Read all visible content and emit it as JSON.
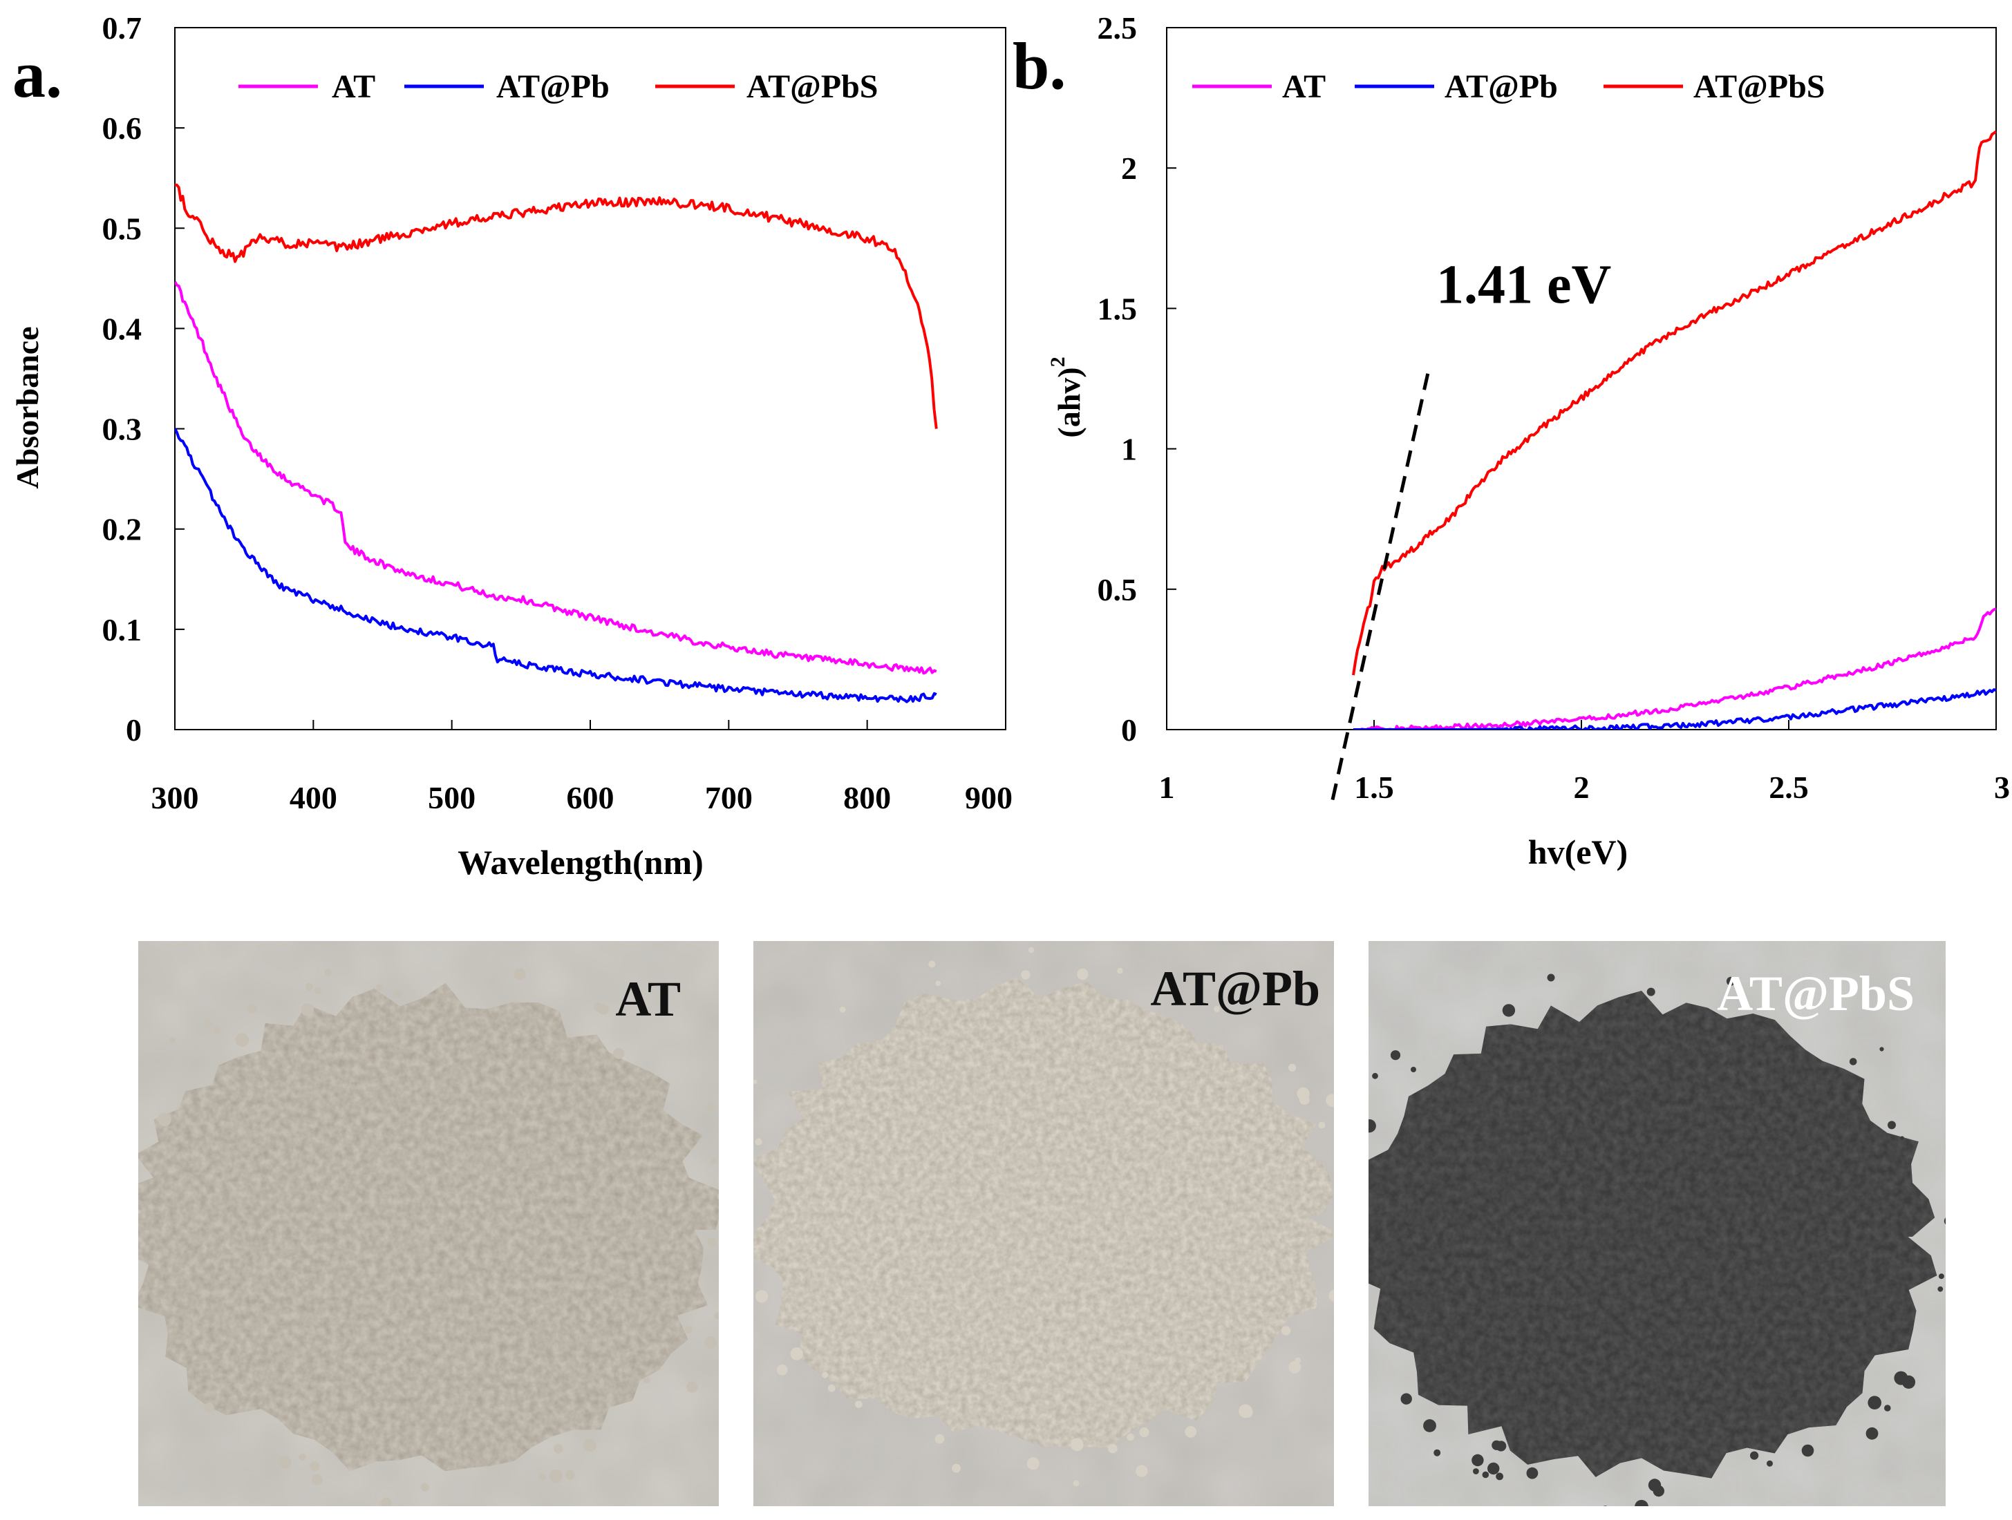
{
  "chart_data": [
    {
      "type": "line",
      "panel_label": "a.",
      "xlabel": "Wavelength(nm)",
      "ylabel": "Absorbance",
      "xlim": [
        300,
        900
      ],
      "ylim": [
        0,
        0.7
      ],
      "xticks": [
        300,
        400,
        500,
        600,
        700,
        800,
        900
      ],
      "xtick_labels": [
        "300",
        "400",
        "500",
        "600",
        "700",
        "800",
        "900"
      ],
      "yticks": [
        0,
        0.1,
        0.2,
        0.3,
        0.4,
        0.5,
        0.6,
        0.7
      ],
      "ytick_labels": [
        "0",
        "0.1",
        "0.2",
        "0.3",
        "0.4",
        "0.5",
        "0.6",
        "0.7"
      ],
      "grid": false,
      "legend_position": "top",
      "series": [
        {
          "name": "AT",
          "color": "#ff00ff",
          "x": [
            300,
            310,
            320,
            330,
            340,
            350,
            360,
            370,
            380,
            400,
            420,
            423,
            430,
            450,
            470,
            500,
            530,
            550,
            600,
            650,
            700,
            750,
            800,
            830,
            850
          ],
          "y": [
            0.45,
            0.415,
            0.385,
            0.35,
            0.32,
            0.29,
            0.275,
            0.262,
            0.25,
            0.235,
            0.218,
            0.185,
            0.178,
            0.165,
            0.155,
            0.145,
            0.133,
            0.13,
            0.112,
            0.095,
            0.082,
            0.072,
            0.065,
            0.06,
            0.058
          ]
        },
        {
          "name": "AT@Pb",
          "color": "#0000ff",
          "x": [
            300,
            310,
            320,
            330,
            340,
            350,
            360,
            370,
            380,
            400,
            420,
            450,
            500,
            530,
            533,
            550,
            600,
            650,
            700,
            750,
            800,
            830,
            850
          ],
          "y": [
            0.3,
            0.275,
            0.25,
            0.225,
            0.2,
            0.18,
            0.165,
            0.15,
            0.14,
            0.13,
            0.12,
            0.105,
            0.092,
            0.083,
            0.07,
            0.065,
            0.055,
            0.048,
            0.04,
            0.035,
            0.032,
            0.03,
            0.035
          ]
        },
        {
          "name": "AT@PbS",
          "color": "#ff0000",
          "x": [
            300,
            310,
            320,
            330,
            345,
            360,
            380,
            400,
            420,
            450,
            500,
            550,
            600,
            650,
            700,
            750,
            800,
            820,
            826,
            835,
            845,
            850
          ],
          "y": [
            0.545,
            0.515,
            0.5,
            0.48,
            0.47,
            0.49,
            0.485,
            0.485,
            0.48,
            0.49,
            0.505,
            0.515,
            0.525,
            0.527,
            0.52,
            0.505,
            0.49,
            0.48,
            0.46,
            0.43,
            0.37,
            0.3
          ]
        }
      ]
    },
    {
      "type": "line",
      "panel_label": "b.",
      "xlabel": "hv(eV)",
      "ylabel_main": "(ahv)",
      "ylabel_sup": "2",
      "xlim": [
        1,
        3
      ],
      "ylim": [
        0,
        2.5
      ],
      "xticks": [
        1,
        1.5,
        2,
        2.5,
        3
      ],
      "xtick_labels": [
        "1",
        "1.5",
        "2",
        "2.5",
        "3"
      ],
      "yticks": [
        0,
        0.5,
        1,
        1.5,
        2,
        2.5
      ],
      "ytick_labels": [
        "0",
        "0.5",
        "1",
        "1.5",
        "2",
        "2.5"
      ],
      "grid": false,
      "legend_position": "top",
      "annotation": {
        "text": "1.41 eV",
        "x": 1.65,
        "y": 1.52
      },
      "tangent_line": {
        "x1": 1.4,
        "y1": -0.25,
        "x2": 1.63,
        "y2": 1.27
      },
      "series": [
        {
          "name": "AT",
          "color": "#ff00ff",
          "x": [
            1.45,
            1.6,
            1.8,
            2.0,
            2.2,
            2.3,
            2.5,
            2.7,
            2.85,
            2.95,
            2.97,
            3.0
          ],
          "y": [
            0.0,
            0.005,
            0.015,
            0.035,
            0.07,
            0.095,
            0.15,
            0.22,
            0.28,
            0.33,
            0.4,
            0.43
          ]
        },
        {
          "name": "AT@Pb",
          "color": "#0000ff",
          "x": [
            1.45,
            1.7,
            2.0,
            2.2,
            2.3,
            2.5,
            2.7,
            2.9,
            3.0
          ],
          "y": [
            0.0,
            0.0,
            0.005,
            0.012,
            0.02,
            0.045,
            0.08,
            0.115,
            0.14
          ]
        },
        {
          "name": "AT@PbS",
          "color": "#ff0000",
          "x": [
            1.45,
            1.47,
            1.49,
            1.5,
            1.52,
            1.6,
            1.7,
            1.8,
            1.9,
            2.0,
            2.1,
            2.2,
            2.3,
            2.4,
            2.5,
            2.6,
            2.7,
            2.8,
            2.9,
            2.95,
            2.96,
            3.0
          ],
          "y": [
            0.2,
            0.35,
            0.45,
            0.52,
            0.57,
            0.65,
            0.78,
            0.95,
            1.07,
            1.18,
            1.3,
            1.4,
            1.48,
            1.55,
            1.62,
            1.7,
            1.77,
            1.84,
            1.92,
            1.95,
            2.08,
            2.13
          ]
        }
      ]
    }
  ],
  "photos": [
    {
      "label": "AT",
      "label_color": "#111111",
      "background": "#d0cdc7",
      "powder": "#c6bfb4",
      "powder_edge": "#a9a196"
    },
    {
      "label": "AT@Pb",
      "label_color": "#111111",
      "background": "#cdcac6",
      "powder": "#d6d0c5",
      "powder_edge": "#b7afa3"
    },
    {
      "label": "AT@PbS",
      "label_color": "#ffffff",
      "background": "#cfcfcd",
      "powder": "#3c3c3c",
      "powder_edge": "#555555"
    }
  ]
}
